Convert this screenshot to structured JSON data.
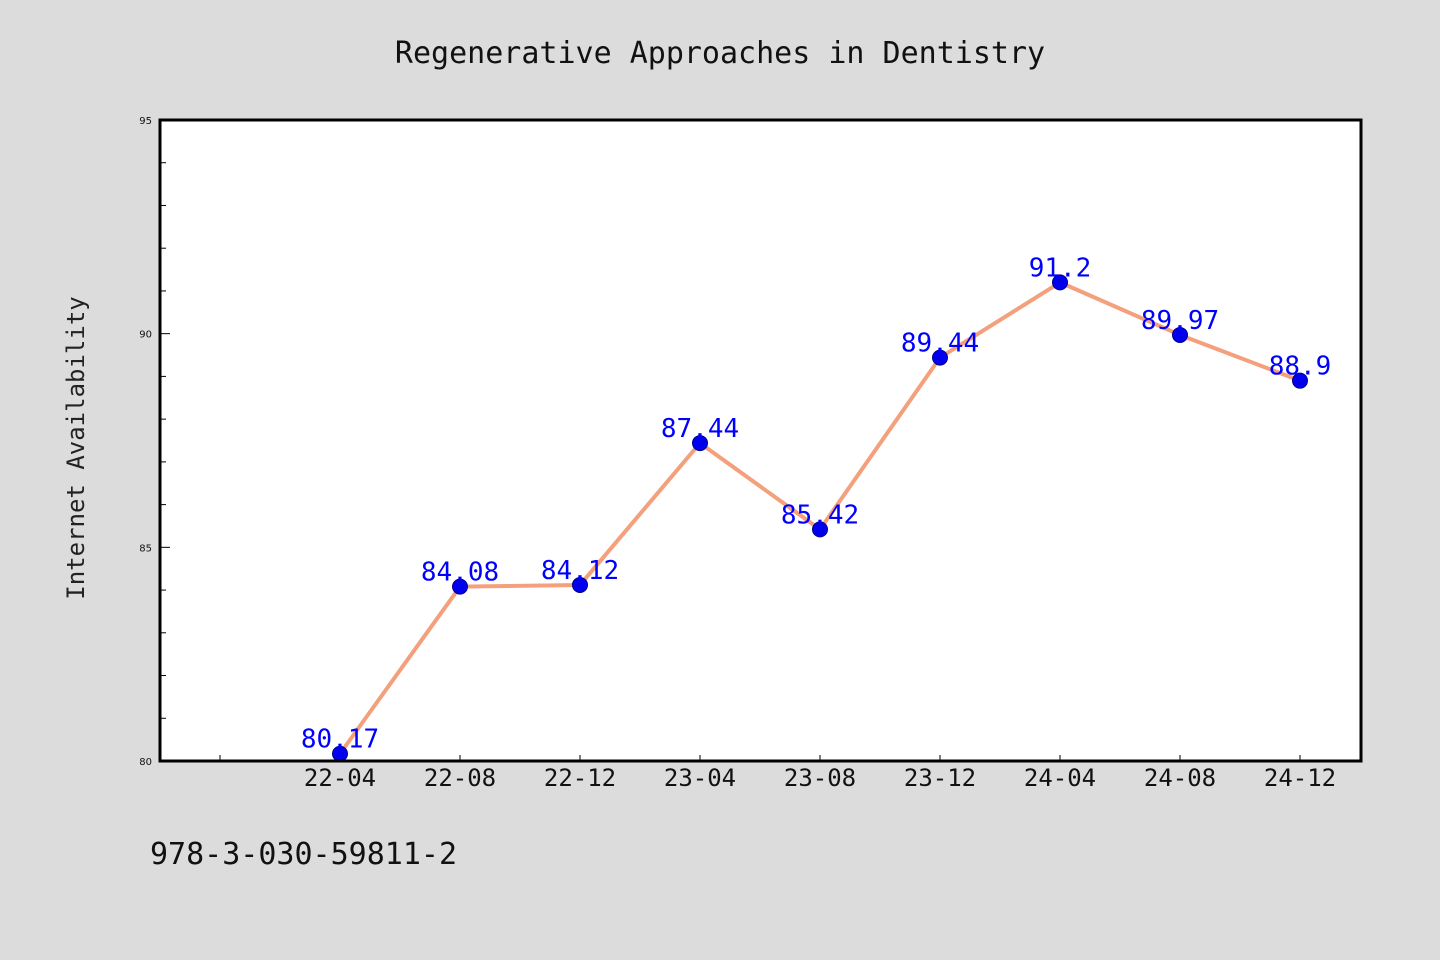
{
  "chart_data": {
    "type": "line",
    "title": "Regenerative Approaches in Dentistry",
    "xlabel": "",
    "ylabel": "Internet Availability",
    "categories": [
      "22-04",
      "22-08",
      "22-12",
      "23-04",
      "23-08",
      "23-12",
      "24-04",
      "24-08",
      "24-12"
    ],
    "series": [
      {
        "values": [
          80.17,
          84.08,
          84.12,
          87.44,
          85.42,
          89.44,
          91.2,
          89.97,
          88.9
        ]
      }
    ],
    "data_labels": [
      "80.17",
      "84.08",
      "84.12",
      "87.44",
      "85.42",
      "89.44",
      "91.2",
      "89.97",
      "88.9"
    ],
    "ylim": [
      80,
      95
    ],
    "yticks": [
      80,
      85,
      90,
      95
    ],
    "ytick_labels": [
      "80",
      "85",
      "90",
      "95"
    ],
    "grid": false,
    "legend": "none",
    "colors": {
      "line": "#f4a07d",
      "marker": "#0000ee",
      "marker_edge": "#00008b",
      "label": "#0000ff",
      "background": "#dcdcdc",
      "plot_background": "#ffffff"
    }
  },
  "footer": {
    "code": "978-3-030-59811-2"
  }
}
